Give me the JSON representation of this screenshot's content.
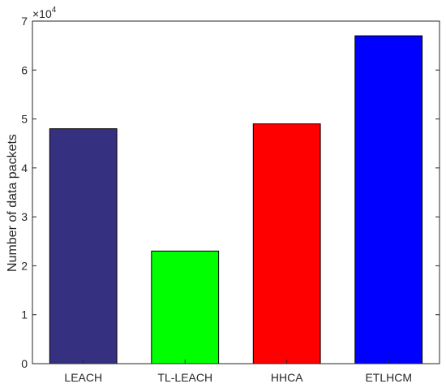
{
  "chart_data": {
    "type": "bar",
    "categories": [
      "LEACH",
      "TL-LEACH",
      "HHCA",
      "ETLHCM"
    ],
    "values": [
      48000,
      23000,
      49000,
      67000
    ],
    "colors": [
      "#35307f",
      "#00ff00",
      "#ff0000",
      "#0000ff"
    ],
    "title": "",
    "xlabel": "",
    "ylabel": "Number of data packets",
    "ylim": [
      0,
      70000
    ],
    "yticks": [
      0,
      10000,
      20000,
      30000,
      40000,
      50000,
      60000,
      70000
    ],
    "ytick_labels": [
      "0",
      "1",
      "2",
      "3",
      "4",
      "5",
      "6",
      "7"
    ],
    "y_multiplier": {
      "base": "×10",
      "exponent": "4"
    },
    "grid": false,
    "legend": "none"
  }
}
